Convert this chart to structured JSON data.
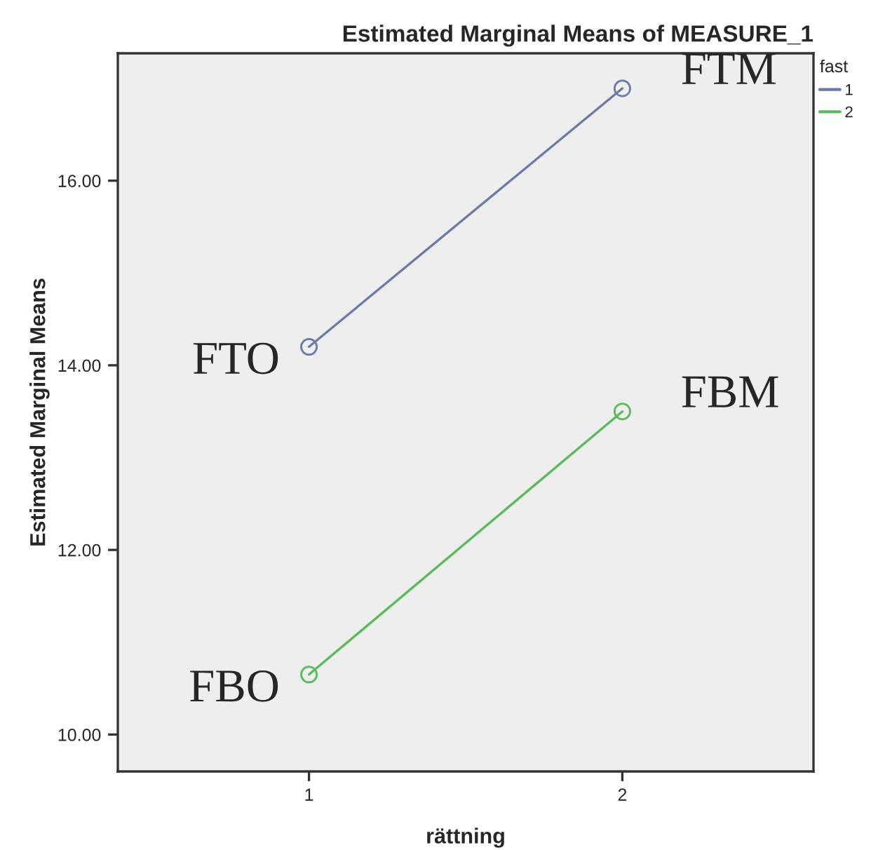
{
  "chart_data": {
    "type": "line",
    "title": "Estimated Marginal Means of MEASURE_1",
    "xlabel": "rättning",
    "ylabel": "Estimated Marginal Means",
    "legend_title": "fast",
    "categories": [
      "1",
      "2"
    ],
    "series": [
      {
        "name": "1",
        "color": "#6b7ba6",
        "values": [
          14.2,
          17.0
        ]
      },
      {
        "name": "2",
        "color": "#5cba5c",
        "values": [
          10.65,
          13.5
        ]
      }
    ],
    "ylim": [
      9.6,
      17.38
    ],
    "yticks": [
      {
        "value": 10,
        "label": "10.00"
      },
      {
        "value": 12,
        "label": "12.00"
      },
      {
        "value": 14,
        "label": "14.00"
      },
      {
        "value": 16,
        "label": "16.00"
      }
    ],
    "annotations": [
      {
        "text": "FTO",
        "x": "1",
        "y": 14.2
      },
      {
        "text": "FTM",
        "x": "2",
        "y": 17.0
      },
      {
        "text": "FBO",
        "x": "1",
        "y": 10.65
      },
      {
        "text": "FBM",
        "x": "2",
        "y": 13.5
      }
    ],
    "marker": "circle",
    "line_style": "solid",
    "legend": "top right",
    "grid": false
  }
}
